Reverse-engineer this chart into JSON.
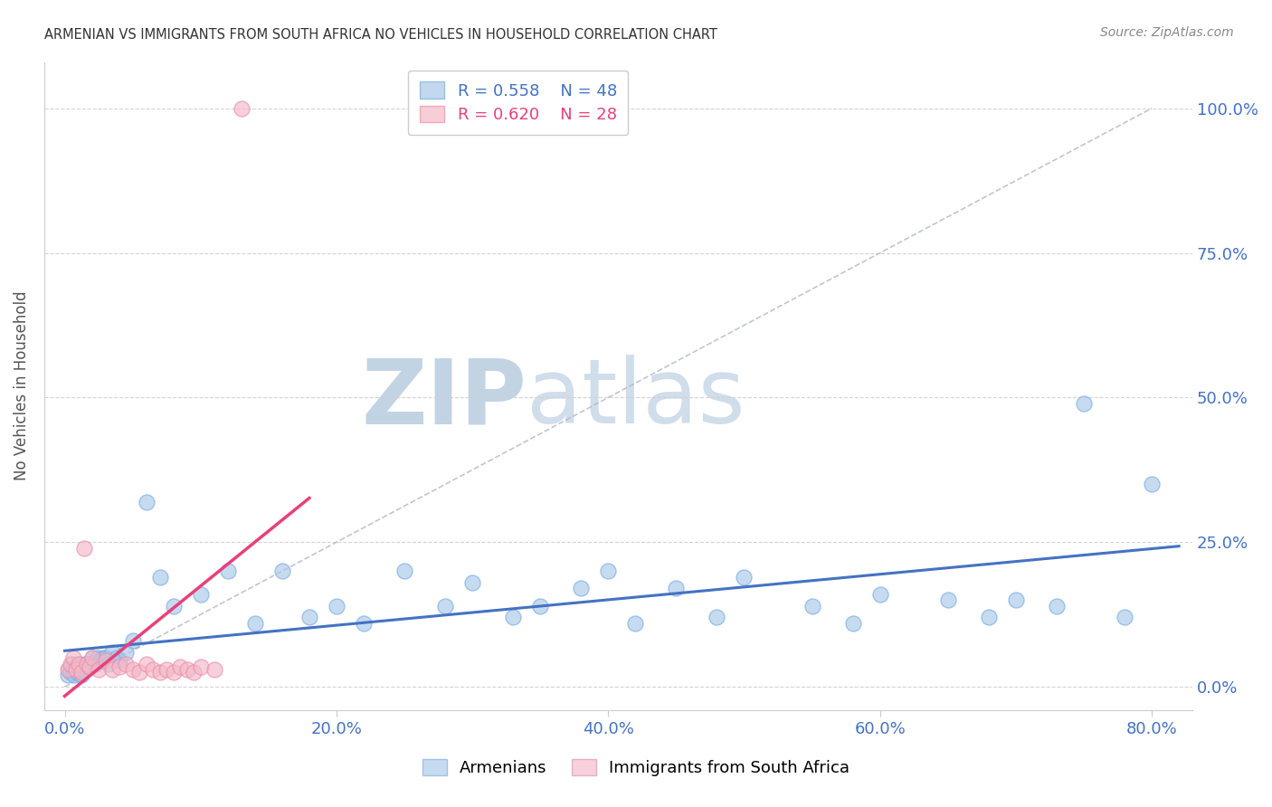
{
  "title": "ARMENIAN VS IMMIGRANTS FROM SOUTH AFRICA NO VEHICLES IN HOUSEHOLD CORRELATION CHART",
  "source": "Source: ZipAtlas.com",
  "ylabel": "No Vehicles in Household",
  "x_ticks": [
    0.0,
    20.0,
    40.0,
    60.0,
    80.0
  ],
  "y_ticks": [
    0.0,
    25.0,
    50.0,
    75.0,
    100.0
  ],
  "xlim": [
    -1.5,
    83.0
  ],
  "ylim": [
    -4.0,
    108.0
  ],
  "watermark_zip": "ZIP",
  "watermark_atlas": "atlas",
  "watermark_color": "#c8d8e8",
  "blue_color": "#a8c8e8",
  "blue_edge": "#7aade0",
  "pink_color": "#f4b8c8",
  "pink_edge": "#e890a8",
  "trend_blue_color": "#4472c4",
  "trend_pink_color": "#e8407a",
  "axis_label_color": "#4472c4",
  "tick_color": "#4472c4",
  "grid_color": "#d0d0d0",
  "armenians_x": [
    0.2,
    0.3,
    0.4,
    0.5,
    0.6,
    0.7,
    0.8,
    0.9,
    1.0,
    1.1,
    1.2,
    1.3,
    1.5,
    1.6,
    1.8,
    2.0,
    2.2,
    2.4,
    2.6,
    2.8,
    3.0,
    3.2,
    3.5,
    3.8,
    4.0,
    4.5,
    5.0,
    6.0,
    7.0,
    8.0,
    10.0,
    12.0,
    14.0,
    16.0,
    18.0,
    20.0,
    22.0,
    25.0,
    28.0,
    30.0,
    33.0,
    35.0,
    38.0,
    40.0,
    42.0,
    45.0,
    48.0,
    50.0,
    55.0,
    58.0,
    60.0,
    65.0,
    68.0,
    70.0,
    73.0,
    75.0,
    78.0,
    80.0
  ],
  "armenians_y": [
    2.0,
    3.0,
    2.5,
    4.0,
    3.0,
    2.0,
    3.5,
    2.5,
    3.0,
    4.0,
    2.0,
    3.0,
    4.0,
    3.5,
    4.0,
    5.0,
    4.0,
    5.0,
    4.5,
    5.0,
    5.0,
    4.0,
    6.0,
    5.0,
    4.5,
    6.0,
    8.0,
    32.0,
    19.0,
    14.0,
    16.0,
    20.0,
    11.0,
    20.0,
    12.0,
    14.0,
    11.0,
    20.0,
    14.0,
    18.0,
    12.0,
    14.0,
    17.0,
    20.0,
    11.0,
    17.0,
    12.0,
    19.0,
    14.0,
    11.0,
    16.0,
    15.0,
    12.0,
    15.0,
    14.0,
    49.0,
    12.0,
    35.0
  ],
  "sa_x": [
    0.2,
    0.4,
    0.6,
    0.8,
    1.0,
    1.2,
    1.4,
    1.6,
    1.8,
    2.0,
    2.5,
    3.0,
    3.5,
    4.0,
    4.5,
    5.0,
    5.5,
    6.0,
    6.5,
    7.0,
    7.5,
    8.0,
    8.5,
    9.0,
    9.5,
    10.0,
    11.0,
    13.0
  ],
  "sa_y": [
    3.0,
    4.0,
    5.0,
    3.0,
    4.0,
    2.5,
    24.0,
    4.0,
    3.5,
    5.0,
    3.0,
    4.5,
    3.0,
    3.5,
    4.0,
    3.0,
    2.5,
    4.0,
    3.0,
    2.5,
    3.0,
    2.5,
    3.5,
    3.0,
    2.5,
    3.5,
    3.0,
    100.0
  ],
  "fig_width": 14.06,
  "fig_height": 8.92,
  "bg_color": "#ffffff"
}
